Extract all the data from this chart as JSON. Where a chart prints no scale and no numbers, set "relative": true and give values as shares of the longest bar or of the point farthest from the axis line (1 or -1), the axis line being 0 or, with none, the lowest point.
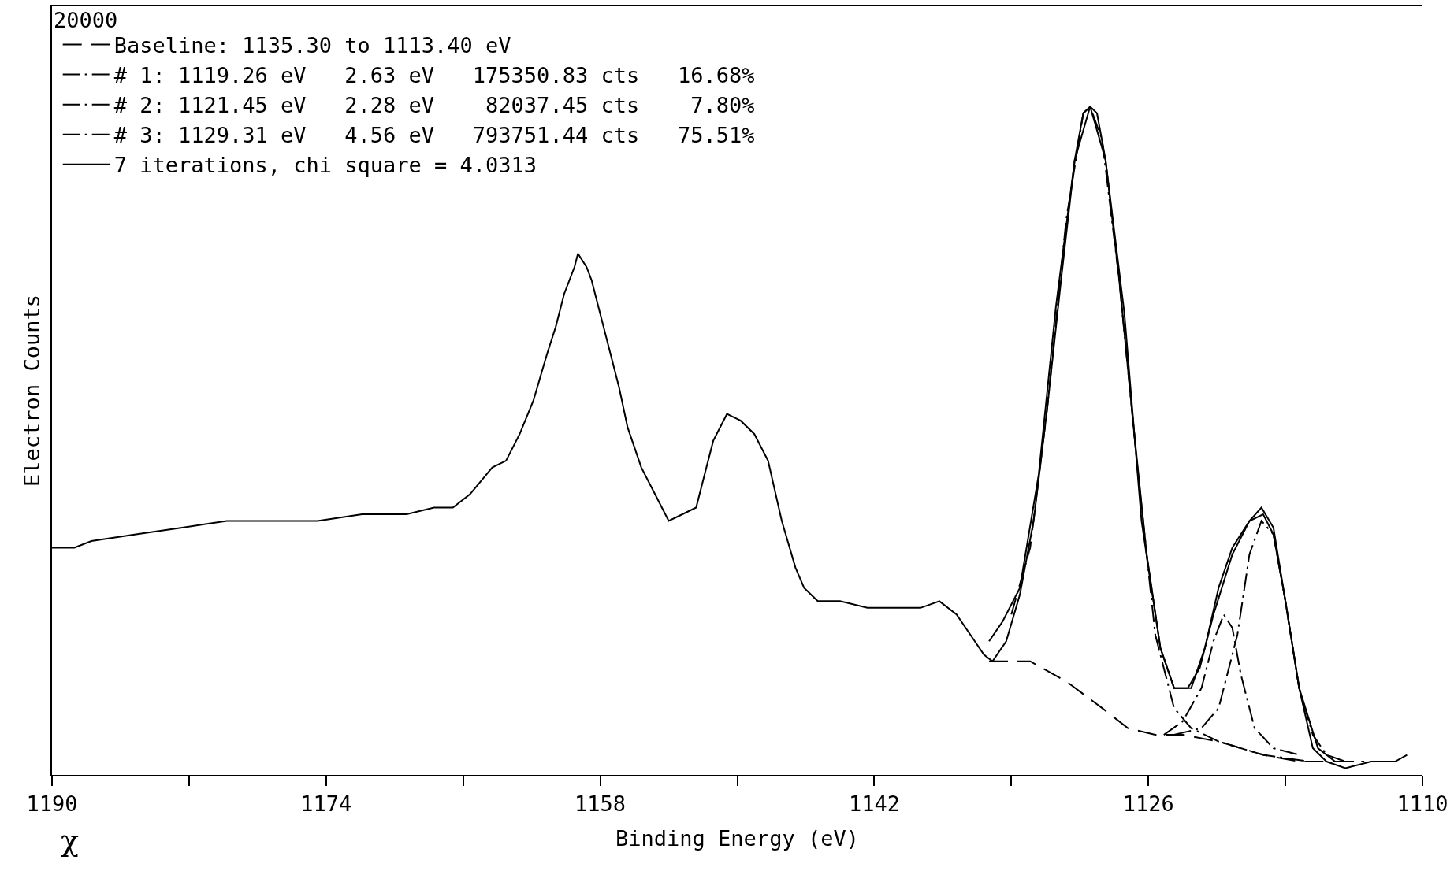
{
  "chart_data": {
    "type": "line",
    "xlabel": "Binding Energy (eV)",
    "ylabel": "Electron Counts",
    "relative": true,
    "xlim": [
      1190,
      1110
    ],
    "xticks": [
      1190,
      {
        "value": 1182,
        "label": null
      },
      1174,
      {
        "value": 1166,
        "label": null
      },
      1158,
      {
        "value": 1150,
        "label": null
      },
      1142,
      {
        "value": 1134,
        "label": null
      },
      1126,
      {
        "value": 1118,
        "label": null
      },
      1110
    ],
    "grid": false,
    "legend": "top left",
    "marker": "none",
    "annotations": [
      "20000",
      "χ"
    ],
    "series": [
      {
        "color": "#000000",
        "line_style": "solid",
        "x": [
          1190.0,
          1188.7,
          1187.7,
          1185.1,
          1182.4,
          1179.8,
          1177.2,
          1174.5,
          1171.9,
          1169.3,
          1167.7,
          1166.6,
          1165.6,
          1164.3,
          1163.5,
          1162.7,
          1161.9,
          1161.1,
          1160.6,
          1160.1,
          1159.5,
          1159.3,
          1158.8,
          1158.5,
          1158.0,
          1157.4,
          1156.9,
          1156.4,
          1155.6,
          1154.8,
          1154.0,
          1153.2,
          1152.4,
          1151.9,
          1151.4,
          1150.6,
          1149.8,
          1149.0,
          1148.2,
          1147.4,
          1146.6,
          1146.1,
          1145.3,
          1144.0,
          1142.4,
          1140.8,
          1139.3,
          1138.2,
          1137.2,
          1136.4,
          1135.6,
          1135.1,
          1134.3,
          1133.5,
          1132.7,
          1131.9,
          1131.1,
          1130.3,
          1129.8,
          1129.4,
          1129.0,
          1128.5,
          1127.7,
          1126.9,
          1126.1,
          1125.3,
          1124.5,
          1124.0,
          1123.5,
          1122.7,
          1121.9,
          1121.1,
          1120.1,
          1119.3,
          1118.7,
          1118.0,
          1117.2,
          1116.4,
          1115.6,
          1114.5,
          1113.0,
          1111.6,
          1110.9
        ],
        "values": [
          0.34,
          0.34,
          0.35,
          0.36,
          0.37,
          0.38,
          0.38,
          0.38,
          0.39,
          0.39,
          0.4,
          0.4,
          0.42,
          0.46,
          0.47,
          0.51,
          0.56,
          0.63,
          0.67,
          0.72,
          0.76,
          0.78,
          0.76,
          0.74,
          0.69,
          0.63,
          0.58,
          0.52,
          0.46,
          0.42,
          0.38,
          0.39,
          0.4,
          0.45,
          0.5,
          0.54,
          0.53,
          0.51,
          0.47,
          0.38,
          0.31,
          0.28,
          0.26,
          0.26,
          0.25,
          0.25,
          0.25,
          0.26,
          0.24,
          0.21,
          0.18,
          0.17,
          0.2,
          0.27,
          0.38,
          0.55,
          0.74,
          0.92,
          0.99,
          1.0,
          0.99,
          0.92,
          0.74,
          0.53,
          0.33,
          0.19,
          0.13,
          0.13,
          0.13,
          0.19,
          0.28,
          0.34,
          0.38,
          0.39,
          0.36,
          0.26,
          0.13,
          0.04,
          0.02,
          0.01,
          0.02,
          0.02,
          0.03
        ]
      },
      {
        "name": "Baseline: 1135.30 to 1113.40 eV",
        "color": "#000000",
        "line_style": "dashed",
        "x": [
          1135.3,
          1132.9,
          1130.8,
          1128.7,
          1127.2,
          1125.6,
          1124.0,
          1121.9,
          1119.3,
          1117.2,
          1113.4
        ],
        "values": [
          0.17,
          0.17,
          0.14,
          0.1,
          0.07,
          0.06,
          0.06,
          0.05,
          0.03,
          0.02,
          0.02
        ]
      },
      {
        "name": "# 1: 1119.26 eV   2.63 eV   175350.83 cts   16.68%",
        "color": "#000000",
        "line_style": "dashdot",
        "x": [
          1124.5,
          1122.9,
          1121.9,
          1120.8,
          1120.1,
          1119.4,
          1118.7,
          1118.0,
          1117.2,
          1116.4,
          1115.6,
          1114.5
        ],
        "values": [
          0.06,
          0.07,
          0.1,
          0.21,
          0.33,
          0.38,
          0.36,
          0.26,
          0.13,
          0.06,
          0.03,
          0.02
        ]
      },
      {
        "name": "# 2: 1121.45 eV   2.28 eV    82037.45 cts    7.80%",
        "color": "#000000",
        "line_style": "dashdot",
        "x": [
          1125.1,
          1124.0,
          1122.9,
          1122.2,
          1121.6,
          1121.1,
          1120.6,
          1119.8,
          1118.7,
          1117.2
        ],
        "values": [
          0.06,
          0.08,
          0.13,
          0.2,
          0.24,
          0.22,
          0.15,
          0.07,
          0.04,
          0.03
        ]
      },
      {
        "name": "# 3: 1129.31 eV   4.56 eV   793751.44 cts   75.51%",
        "color": "#000000",
        "line_style": "dashdot",
        "x": [
          1134.0,
          1132.9,
          1131.9,
          1130.8,
          1129.8,
          1129.4,
          1128.7,
          1127.7,
          1126.6,
          1125.6,
          1124.5,
          1123.5,
          1121.9,
          1119.3,
          1116.6
        ],
        "values": [
          0.24,
          0.34,
          0.55,
          0.83,
          0.99,
          1.0,
          0.95,
          0.74,
          0.45,
          0.21,
          0.1,
          0.07,
          0.05,
          0.03,
          0.02
        ]
      },
      {
        "name": "7 iterations, chi square = 4.0313",
        "color": "#000000",
        "line_style": "solid",
        "x": [
          1135.3,
          1134.5,
          1133.5,
          1132.4,
          1131.4,
          1130.3,
          1129.4,
          1128.5,
          1127.4,
          1126.4,
          1125.3,
          1124.5,
          1123.7,
          1123.0,
          1122.2,
          1121.1,
          1120.1,
          1119.4,
          1118.7,
          1118.0,
          1117.2,
          1116.1,
          1115.1,
          1114.0
        ],
        "values": [
          0.2,
          0.23,
          0.28,
          0.45,
          0.7,
          0.92,
          1.0,
          0.92,
          0.69,
          0.38,
          0.19,
          0.13,
          0.13,
          0.16,
          0.24,
          0.33,
          0.38,
          0.4,
          0.37,
          0.26,
          0.13,
          0.04,
          0.02,
          0.02
        ]
      }
    ]
  }
}
